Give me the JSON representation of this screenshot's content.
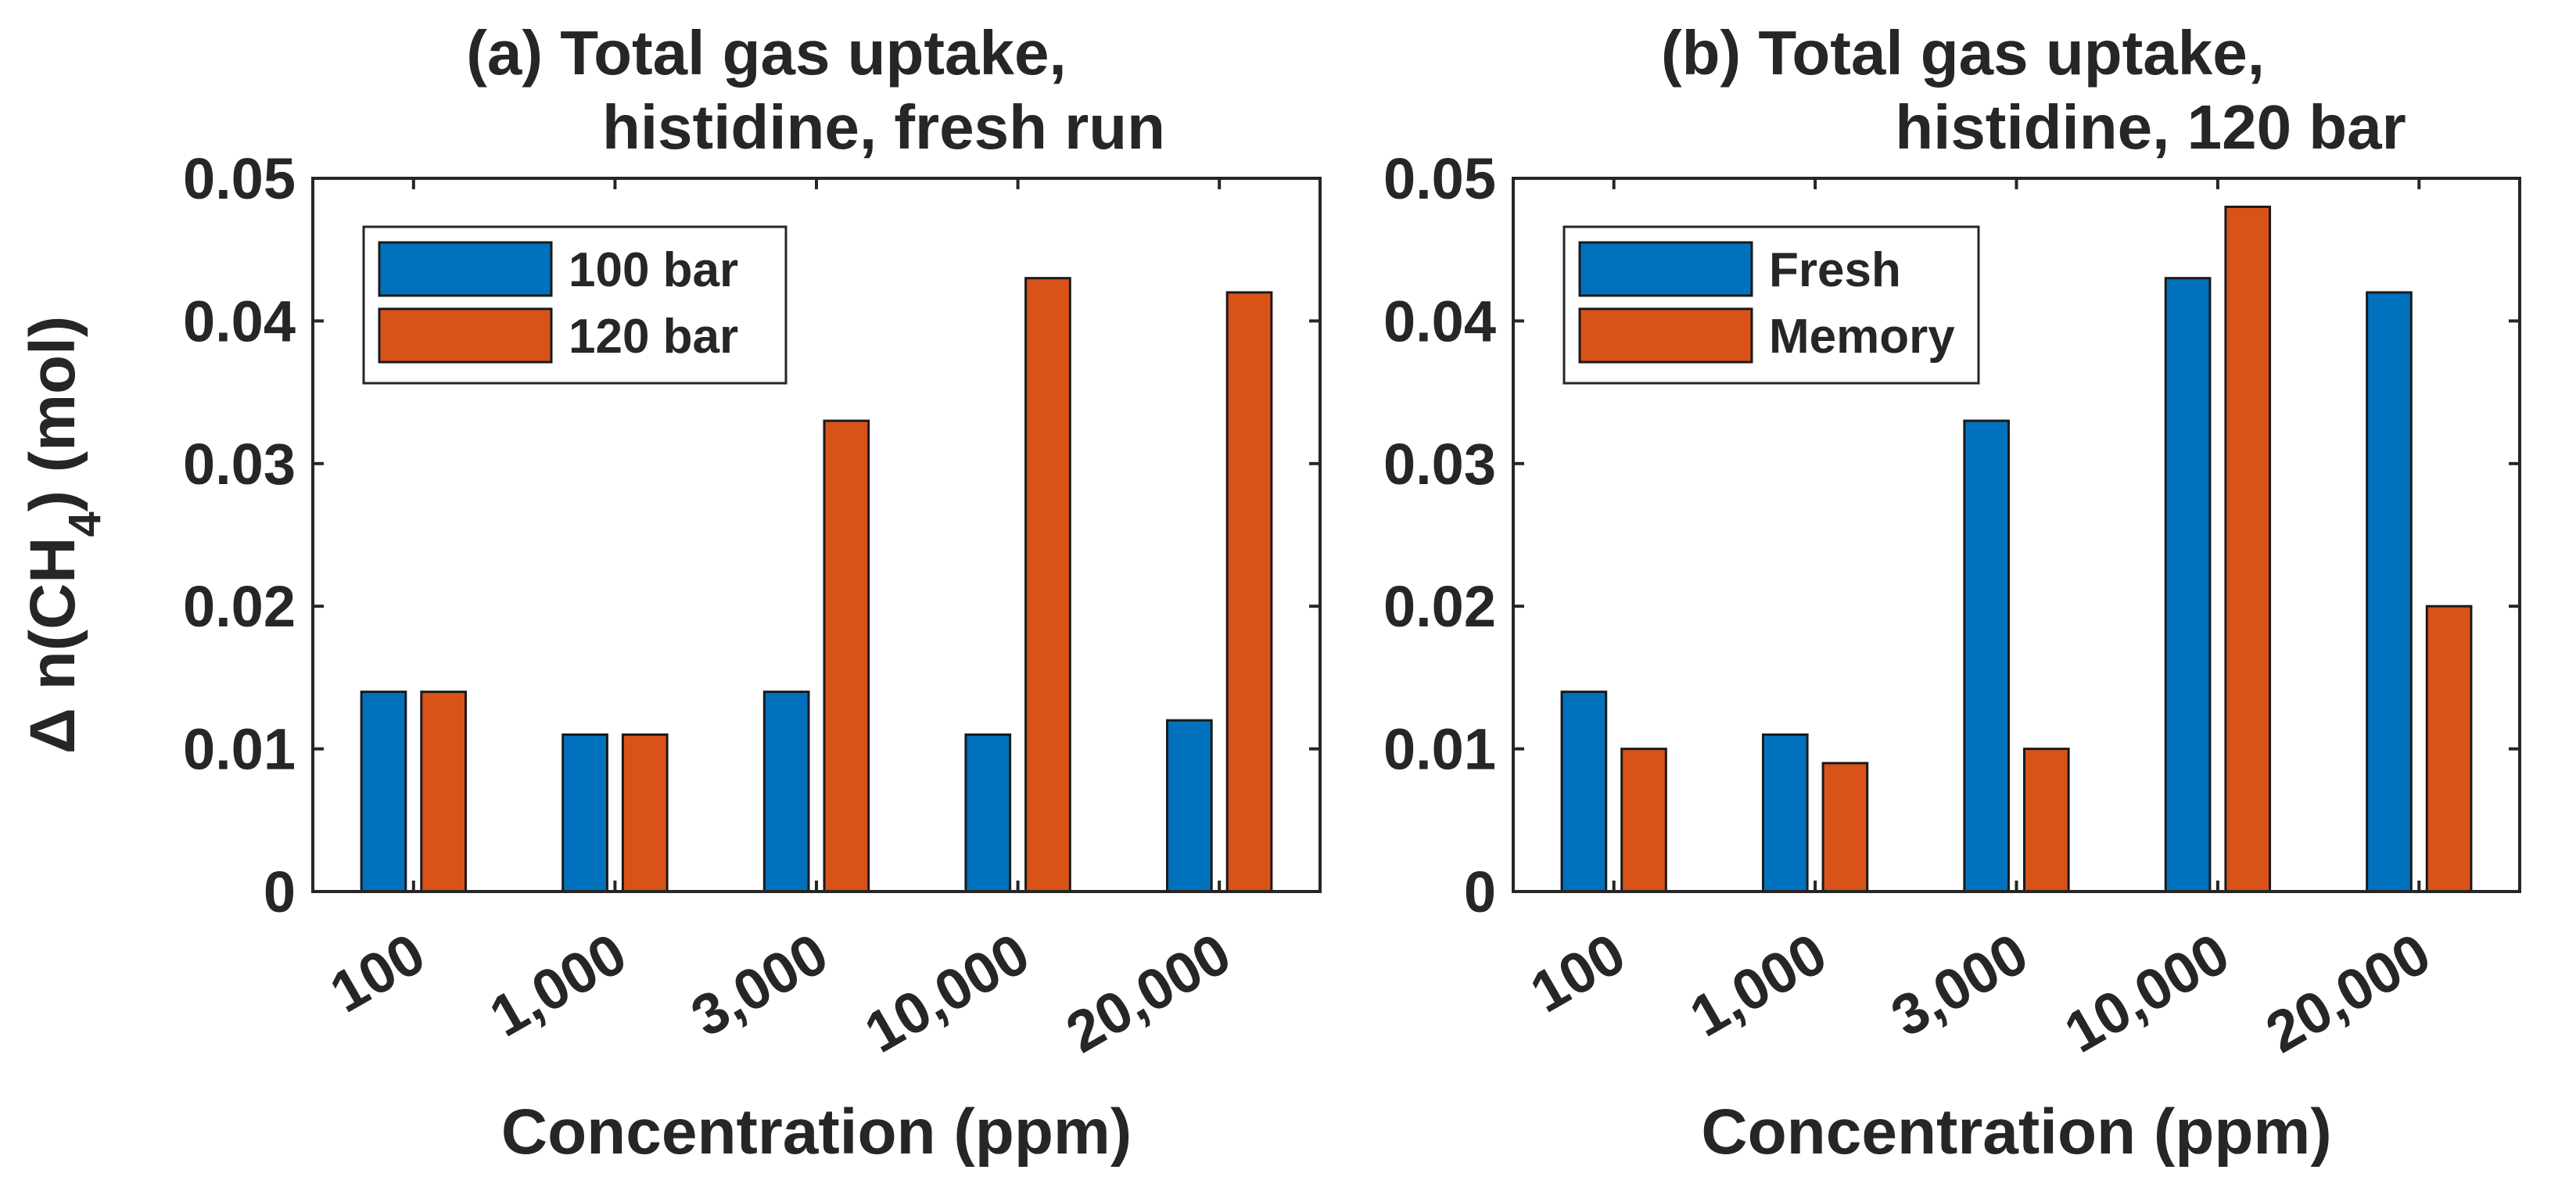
{
  "colors": {
    "series1": "#0072BD",
    "series2": "#D95319",
    "axis": "#262626",
    "background": "#ffffff"
  },
  "ylabel": {
    "delta": "Δ",
    "prefix": " n(CH",
    "sub": "4",
    "suffix": ") (mol)"
  },
  "chart_data": [
    {
      "type": "bar",
      "title_line1": "(a) Total gas uptake,",
      "title_line2": "histidine, fresh run",
      "xlabel": "Concentration (ppm)",
      "ylabel": "Δ n(CH4) (mol)",
      "categories": [
        "100",
        "1,000",
        "3,000",
        "10,000",
        "20,000"
      ],
      "ylim": [
        0,
        0.05
      ],
      "yticks": [
        "0",
        "0.01",
        "0.02",
        "0.03",
        "0.04",
        "0.05"
      ],
      "ytick_values": [
        0,
        0.01,
        0.02,
        0.03,
        0.04,
        0.05
      ],
      "legend_position": "top-left",
      "series": [
        {
          "name": "100 bar",
          "values": [
            0.014,
            0.011,
            0.014,
            0.011,
            0.012
          ]
        },
        {
          "name": "120 bar",
          "values": [
            0.014,
            0.011,
            0.033,
            0.043,
            0.042
          ]
        }
      ]
    },
    {
      "type": "bar",
      "title_line1": "(b) Total gas uptake,",
      "title_line2": "histidine, 120 bar",
      "xlabel": "Concentration (ppm)",
      "ylabel": "",
      "categories": [
        "100",
        "1,000",
        "3,000",
        "10,000",
        "20,000"
      ],
      "ylim": [
        0,
        0.05
      ],
      "yticks": [
        "0",
        "0.01",
        "0.02",
        "0.03",
        "0.04",
        "0.05"
      ],
      "ytick_values": [
        0,
        0.01,
        0.02,
        0.03,
        0.04,
        0.05
      ],
      "legend_position": "top-left",
      "series": [
        {
          "name": "Fresh",
          "values": [
            0.014,
            0.011,
            0.033,
            0.043,
            0.042
          ]
        },
        {
          "name": "Memory",
          "values": [
            0.01,
            0.009,
            0.01,
            0.048,
            0.02
          ]
        }
      ]
    }
  ]
}
